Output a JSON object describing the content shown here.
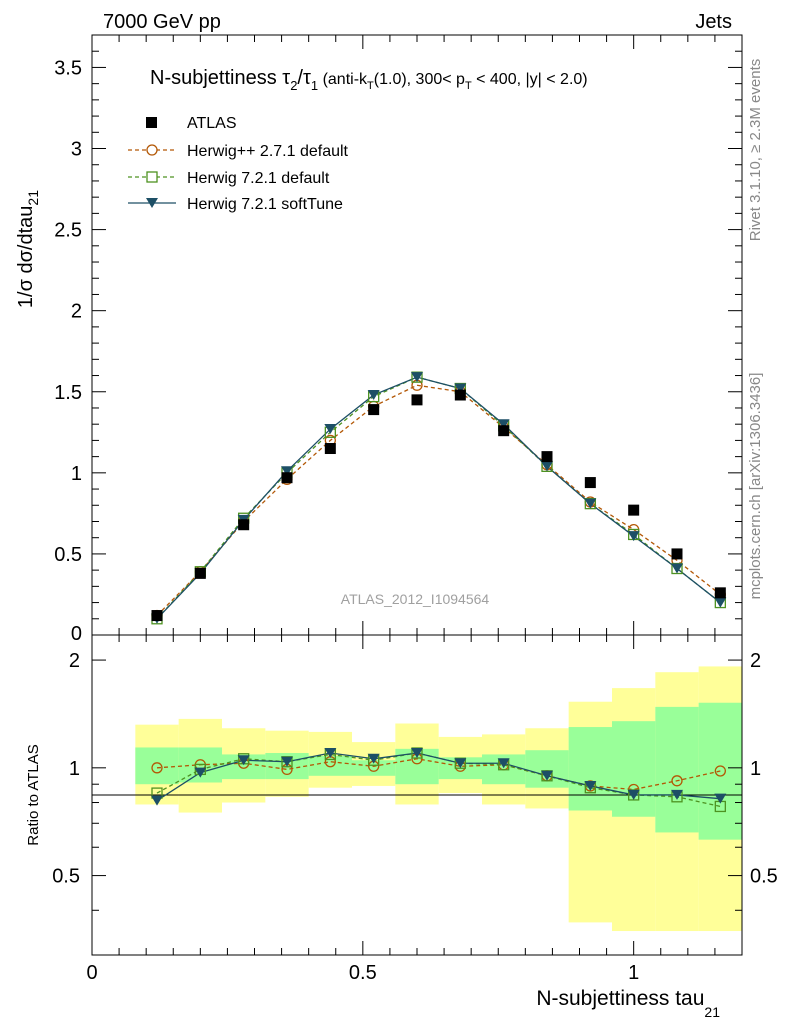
{
  "header": {
    "left": "7000 GeV pp",
    "right": "Jets"
  },
  "side_text": {
    "rivet": "Rivet 3.1.10, ≥ 2.3M events",
    "mcplots": "mcplots.cern.ch [arXiv:1306.3436]"
  },
  "watermark": "ATLAS_2012_I1094564",
  "colors": {
    "data": "#000000",
    "herwigpp": "#b35806",
    "herwig721": "#4d9221",
    "softtune": "#1d4f66",
    "band_outer": "#ffff99",
    "band_inner": "#99ff99"
  },
  "chart_data": [
    {
      "type": "scatter",
      "role": "main",
      "title_parts": {
        "pre": "N-subjettiness τ",
        "sub1": "2",
        "mid": "/τ",
        "sub2": "1",
        "sel_a": " (anti-k",
        "sel_a_sub": "T",
        "sel_b": "(1.0), 300< p",
        "sel_b_sub": "T",
        "sel_c": " < 400, |y| < 2.0)"
      },
      "ylabel": {
        "main": "1/σ dσ/dtau",
        "sub": "21"
      },
      "xlim": [
        0,
        1.2
      ],
      "ylim": [
        0,
        3.7
      ],
      "yticks": [
        "0.5",
        "1",
        "1.5",
        "2",
        "2.5",
        "3",
        "3.5"
      ],
      "y_zero_label": "0",
      "x": [
        0.12,
        0.2,
        0.28,
        0.36,
        0.44,
        0.52,
        0.6,
        0.68,
        0.76,
        0.84,
        0.92,
        1.0,
        1.08,
        1.16
      ],
      "series": [
        {
          "name": "ATLAS",
          "key": "data",
          "values": [
            0.12,
            0.38,
            0.68,
            0.97,
            1.15,
            1.39,
            1.45,
            1.48,
            1.26,
            1.1,
            0.94,
            0.77,
            0.5,
            0.26
          ]
        },
        {
          "name": "Herwig++ 2.7.1 default",
          "key": "herwigpp",
          "values": [
            0.12,
            0.39,
            0.7,
            0.96,
            1.2,
            1.41,
            1.54,
            1.5,
            1.28,
            1.05,
            0.82,
            0.65,
            0.46,
            0.25
          ]
        },
        {
          "name": "Herwig 7.2.1 default",
          "key": "herwig721",
          "values": [
            0.1,
            0.39,
            0.72,
            1.0,
            1.25,
            1.47,
            1.59,
            1.52,
            1.29,
            1.04,
            0.81,
            0.62,
            0.41,
            0.2
          ]
        },
        {
          "name": "Herwig 7.2.1 softTune",
          "key": "softtune",
          "values": [
            0.1,
            0.38,
            0.71,
            1.01,
            1.27,
            1.48,
            1.59,
            1.52,
            1.3,
            1.04,
            0.81,
            0.61,
            0.41,
            0.2
          ]
        }
      ]
    },
    {
      "type": "line",
      "role": "ratio",
      "ylabel": "Ratio to ATLAS",
      "xlabel": {
        "main": "N-subjettiness tau",
        "sub": "21"
      },
      "xlim": [
        0,
        1.2
      ],
      "ylim": [
        0.3,
        2.35
      ],
      "log_y": true,
      "yticks_labeled": [
        "0.5",
        "1",
        "2"
      ],
      "xticks_labeled": [
        "0",
        "0.5",
        "1"
      ],
      "bins": [
        [
          0.08,
          0.16
        ],
        [
          0.16,
          0.24
        ],
        [
          0.24,
          0.32
        ],
        [
          0.32,
          0.4
        ],
        [
          0.4,
          0.48
        ],
        [
          0.48,
          0.56
        ],
        [
          0.56,
          0.64
        ],
        [
          0.64,
          0.72
        ],
        [
          0.72,
          0.8
        ],
        [
          0.8,
          0.88
        ],
        [
          0.88,
          0.96
        ],
        [
          0.96,
          1.04
        ],
        [
          1.04,
          1.12
        ],
        [
          1.12,
          1.2
        ]
      ],
      "band_outer": [
        [
          0.79,
          1.32
        ],
        [
          0.75,
          1.37
        ],
        [
          0.8,
          1.29
        ],
        [
          0.83,
          1.27
        ],
        [
          0.88,
          1.26
        ],
        [
          0.89,
          1.18
        ],
        [
          0.79,
          1.33
        ],
        [
          0.85,
          1.22
        ],
        [
          0.79,
          1.24
        ],
        [
          0.77,
          1.29
        ],
        [
          0.37,
          1.53
        ],
        [
          0.35,
          1.67
        ],
        [
          0.35,
          1.85
        ],
        [
          0.35,
          1.92
        ]
      ],
      "band_inner": [
        [
          0.9,
          1.14
        ],
        [
          0.91,
          1.14
        ],
        [
          0.93,
          1.09
        ],
        [
          0.93,
          1.1
        ],
        [
          0.95,
          1.08
        ],
        [
          0.95,
          1.05
        ],
        [
          0.9,
          1.13
        ],
        [
          0.93,
          1.07
        ],
        [
          0.9,
          1.09
        ],
        [
          0.88,
          1.12
        ],
        [
          0.76,
          1.3
        ],
        [
          0.73,
          1.35
        ],
        [
          0.66,
          1.48
        ],
        [
          0.63,
          1.52
        ]
      ],
      "x": [
        0.12,
        0.2,
        0.28,
        0.36,
        0.44,
        0.52,
        0.6,
        0.68,
        0.76,
        0.84,
        0.92,
        1.0,
        1.08,
        1.16
      ],
      "series": [
        {
          "name": "Herwig++ 2.7.1 default",
          "key": "herwigpp",
          "values": [
            1.0,
            1.02,
            1.03,
            0.99,
            1.04,
            1.01,
            1.06,
            1.01,
            1.02,
            0.95,
            0.89,
            0.87,
            0.92,
            0.98
          ]
        },
        {
          "name": "Herwig 7.2.1 default",
          "key": "herwig721",
          "values": [
            0.85,
            0.99,
            1.06,
            1.04,
            1.09,
            1.05,
            1.1,
            1.03,
            1.02,
            0.95,
            0.88,
            0.84,
            0.83,
            0.78
          ]
        },
        {
          "name": "Herwig 7.2.1 softTune",
          "key": "softtune",
          "values": [
            0.81,
            0.97,
            1.05,
            1.04,
            1.1,
            1.06,
            1.1,
            1.03,
            1.03,
            0.95,
            0.89,
            0.84,
            0.84,
            0.82
          ]
        }
      ]
    }
  ]
}
